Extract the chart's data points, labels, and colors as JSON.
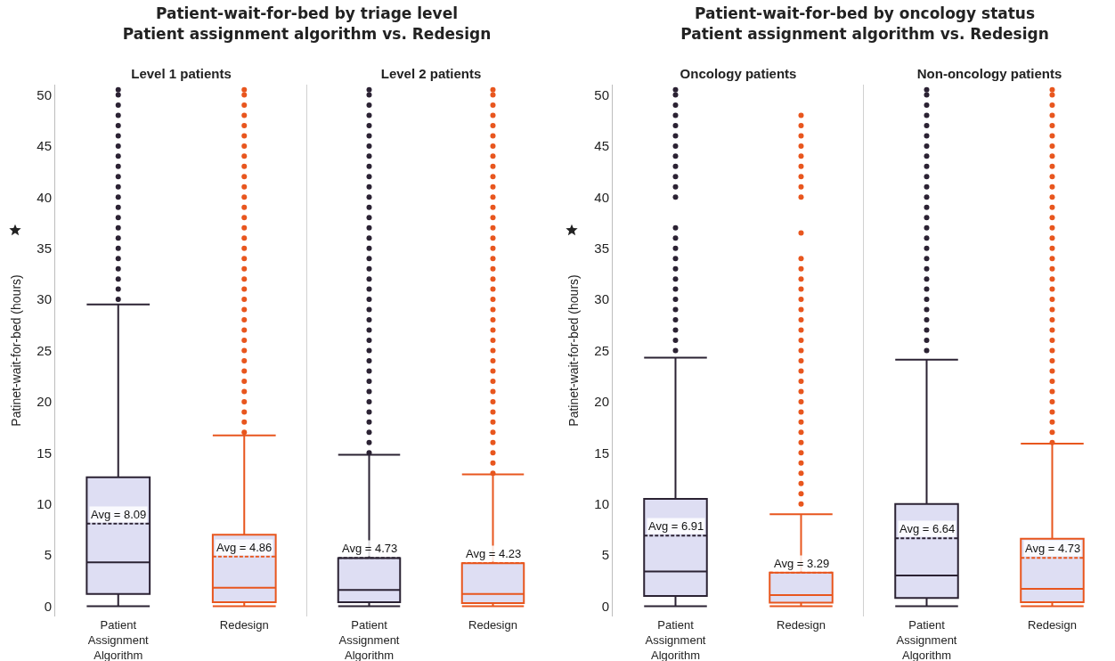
{
  "chart_data": [
    {
      "type": "box",
      "title": "Patient-wait-for-bed by triage level\nPatient assignment algorithm vs. Redesign",
      "subtitle": "Level 1 patients",
      "ylabel": "Patinet-wait-for-bed (hours)",
      "categories": [
        "Patient Assignment Algorithm",
        "Redesign"
      ],
      "colors": [
        "#2b2233",
        "#e8561e"
      ],
      "ylim": [
        -1,
        51
      ],
      "yticks": [
        0,
        5,
        10,
        15,
        20,
        25,
        30,
        35,
        40,
        45,
        50
      ],
      "grid": false,
      "legend": false,
      "boxes": [
        {
          "low": 0,
          "q1": 1.2,
          "median": 4.3,
          "q3": 12.6,
          "high": 29.5,
          "mean": 8.09,
          "outliers": [
            30,
            31,
            32,
            33,
            34,
            35,
            36,
            37,
            38,
            39,
            40,
            41,
            42,
            43,
            44,
            45,
            46,
            47,
            48,
            49,
            50,
            50.5
          ]
        },
        {
          "low": 0,
          "q1": 0.4,
          "median": 1.8,
          "q3": 7.0,
          "high": 16.7,
          "mean": 4.86,
          "outliers": [
            17,
            18,
            19,
            20,
            21,
            22,
            23,
            24,
            25,
            26,
            27,
            28,
            29,
            30,
            31,
            32,
            33,
            34,
            35,
            36,
            37,
            38,
            39,
            40,
            41,
            42,
            43,
            44,
            45,
            46,
            47,
            48,
            49,
            50,
            50.5
          ]
        }
      ],
      "annotations": [
        {
          "text": "Avg = 8.09",
          "x": "Patient Assignment Algorithm",
          "y": 8.09
        },
        {
          "text": "Avg = 4.86",
          "x": "Redesign",
          "y": 4.86
        }
      ]
    },
    {
      "type": "box",
      "subtitle": "Level 2 patients",
      "categories": [
        "Patient Assignment Algorithm",
        "Redesign"
      ],
      "colors": [
        "#2b2233",
        "#e8561e"
      ],
      "ylim": [
        -1,
        51
      ],
      "yticks": [
        0,
        5,
        10,
        15,
        20,
        25,
        30,
        35,
        40,
        45,
        50
      ],
      "tick_labels": "x",
      "grid": false,
      "legend": false,
      "boxes": [
        {
          "low": 0,
          "q1": 0.4,
          "median": 1.6,
          "q3": 4.7,
          "high": 14.8,
          "mean": 4.73,
          "outliers": [
            15,
            16,
            17,
            18,
            19,
            20,
            21,
            22,
            23,
            24,
            25,
            26,
            27,
            28,
            29,
            30,
            31,
            32,
            33,
            34,
            35,
            36,
            37,
            38,
            39,
            40,
            41,
            42,
            43,
            44,
            45,
            46,
            47,
            48,
            49,
            50,
            50.5
          ]
        },
        {
          "low": 0,
          "q1": 0.3,
          "median": 1.2,
          "q3": 4.2,
          "high": 12.9,
          "mean": 4.23,
          "outliers": [
            13,
            14,
            15,
            16,
            17,
            18,
            19,
            20,
            21,
            22,
            23,
            24,
            25,
            26,
            27,
            28,
            29,
            30,
            31,
            32,
            33,
            34,
            35,
            36,
            37,
            38,
            39,
            40,
            41,
            42,
            43,
            44,
            45,
            46,
            47,
            48,
            49,
            50,
            50.5
          ]
        }
      ],
      "annotations": [
        {
          "text": "Avg = 4.73",
          "x": "Patient Assignment Algorithm",
          "y": 4.73
        },
        {
          "text": "Avg = 4.23",
          "x": "Redesign",
          "y": 4.23
        }
      ]
    },
    {
      "type": "box",
      "title": "Patient-wait-for-bed by oncology status\nPatient assignment algorithm vs. Redesign",
      "subtitle": "Oncology patients",
      "ylabel": "Patinet-wait-for-bed (hours)",
      "categories": [
        "Patient Assignment Algorithm",
        "Redesign"
      ],
      "colors": [
        "#2b2233",
        "#e8561e"
      ],
      "ylim": [
        -1,
        51
      ],
      "yticks": [
        0,
        5,
        10,
        15,
        20,
        25,
        30,
        35,
        40,
        45,
        50
      ],
      "grid": false,
      "legend": false,
      "boxes": [
        {
          "low": 0,
          "q1": 1.0,
          "median": 3.4,
          "q3": 10.5,
          "high": 24.3,
          "mean": 6.91,
          "outliers": [
            25,
            26,
            27,
            28,
            29,
            30,
            31,
            32,
            33,
            34,
            35,
            36,
            37,
            40,
            41,
            42,
            43,
            44,
            45,
            46,
            47,
            48,
            49,
            50,
            50.5
          ]
        },
        {
          "low": 0,
          "q1": 0.35,
          "median": 1.1,
          "q3": 3.3,
          "high": 9.0,
          "mean": 3.29,
          "outliers": [
            10,
            11,
            12,
            13,
            14,
            15,
            16,
            17,
            18,
            19,
            20,
            21,
            22,
            23,
            24,
            25,
            26,
            27,
            28,
            29,
            30,
            31,
            32,
            33,
            34,
            36.5,
            40,
            41,
            42,
            43,
            44,
            45,
            46,
            47,
            48
          ]
        }
      ],
      "annotations": [
        {
          "text": "Avg = 6.91",
          "x": "Patient Assignment Algorithm",
          "y": 6.91
        },
        {
          "text": "Avg = 3.29",
          "x": "Redesign",
          "y": 3.29
        }
      ]
    },
    {
      "type": "box",
      "subtitle": "Non-oncology patients",
      "categories": [
        "Patient Assignment Algorithm",
        "Redesign"
      ],
      "colors": [
        "#2b2233",
        "#e8561e"
      ],
      "ylim": [
        -1,
        51
      ],
      "yticks": [
        0,
        5,
        10,
        15,
        20,
        25,
        30,
        35,
        40,
        45,
        50
      ],
      "tick_labels": "x",
      "grid": false,
      "legend": false,
      "boxes": [
        {
          "low": 0,
          "q1": 0.8,
          "median": 3.0,
          "q3": 10.0,
          "high": 24.1,
          "mean": 6.64,
          "outliers": [
            25,
            26,
            27,
            28,
            29,
            30,
            31,
            32,
            33,
            34,
            35,
            36,
            37,
            38,
            39,
            40,
            41,
            42,
            43,
            44,
            45,
            46,
            47,
            48,
            49,
            50,
            50.5
          ]
        },
        {
          "low": 0,
          "q1": 0.4,
          "median": 1.7,
          "q3": 6.6,
          "high": 15.9,
          "mean": 4.73,
          "outliers": [
            16,
            17,
            18,
            19,
            20,
            21,
            22,
            23,
            24,
            25,
            26,
            27,
            28,
            29,
            30,
            31,
            32,
            33,
            34,
            35,
            36,
            37,
            38,
            39,
            40,
            41,
            42,
            43,
            44,
            45,
            46,
            47,
            48,
            49,
            50,
            50.5
          ]
        }
      ],
      "annotations": [
        {
          "text": "Avg = 6.64",
          "x": "Patient Assignment Algorithm",
          "y": 6.64
        },
        {
          "text": "Avg = 4.73",
          "x": "Redesign",
          "y": 4.73
        }
      ]
    }
  ]
}
